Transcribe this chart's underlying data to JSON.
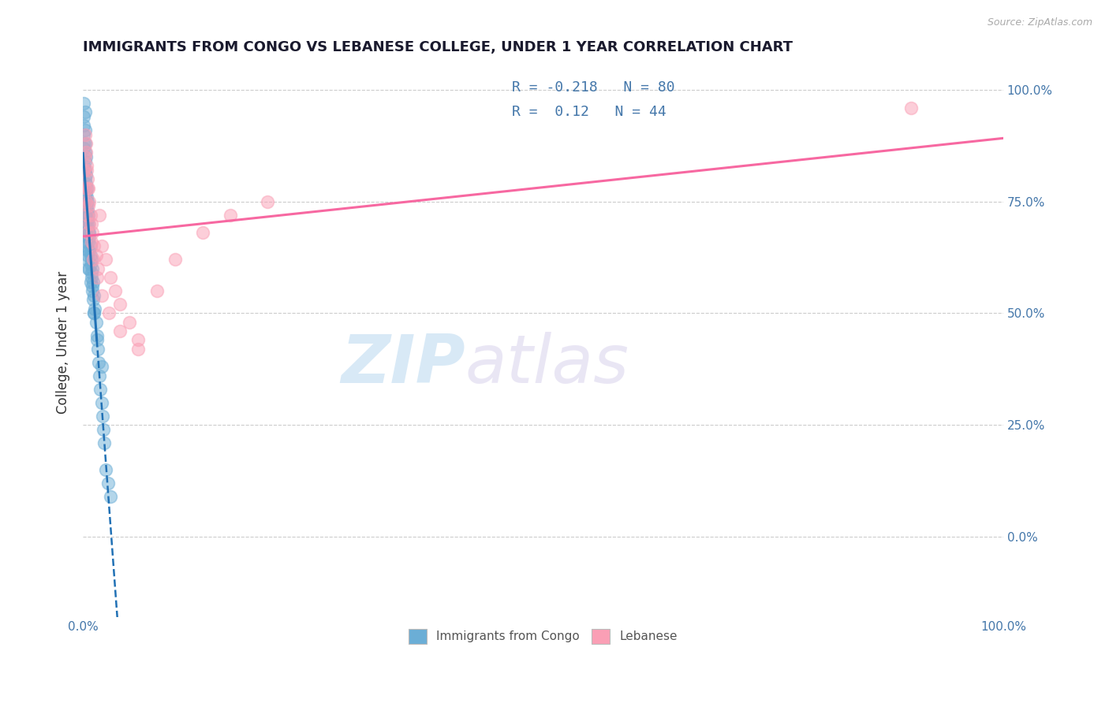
{
  "title": "IMMIGRANTS FROM CONGO VS LEBANESE COLLEGE, UNDER 1 YEAR CORRELATION CHART",
  "source": "Source: ZipAtlas.com",
  "ylabel": "College, Under 1 year",
  "legend_bottom": [
    "Immigrants from Congo",
    "Lebanese"
  ],
  "r_congo": -0.218,
  "n_congo": 80,
  "r_lebanese": 0.12,
  "n_lebanese": 44,
  "color_congo": "#6baed6",
  "color_lebanese": "#fa9fb5",
  "color_congo_line": "#2171b5",
  "color_lebanese_line": "#f768a1",
  "background_color": "#ffffff",
  "watermark_zip": "ZIP",
  "watermark_atlas": "atlas",
  "title_color": "#1a1a2e",
  "title_fontsize": 13,
  "axis_color": "#4477aa",
  "congo_scatter_x": [
    0.001,
    0.001,
    0.001,
    0.001,
    0.001,
    0.002,
    0.002,
    0.002,
    0.002,
    0.002,
    0.002,
    0.002,
    0.003,
    0.003,
    0.003,
    0.003,
    0.003,
    0.003,
    0.004,
    0.004,
    0.004,
    0.004,
    0.004,
    0.005,
    0.005,
    0.005,
    0.005,
    0.006,
    0.006,
    0.006,
    0.006,
    0.007,
    0.007,
    0.007,
    0.008,
    0.008,
    0.008,
    0.009,
    0.009,
    0.01,
    0.01,
    0.011,
    0.011,
    0.012,
    0.012,
    0.013,
    0.014,
    0.015,
    0.016,
    0.017,
    0.018,
    0.019,
    0.02,
    0.021,
    0.022,
    0.023,
    0.025,
    0.027,
    0.03,
    0.001,
    0.001,
    0.002,
    0.002,
    0.002,
    0.003,
    0.003,
    0.003,
    0.004,
    0.004,
    0.005,
    0.005,
    0.006,
    0.006,
    0.007,
    0.008,
    0.009,
    0.01,
    0.012,
    0.015,
    0.02
  ],
  "congo_scatter_y": [
    0.97,
    0.94,
    0.9,
    0.87,
    0.83,
    0.95,
    0.91,
    0.88,
    0.84,
    0.8,
    0.76,
    0.72,
    0.85,
    0.81,
    0.77,
    0.73,
    0.69,
    0.65,
    0.78,
    0.74,
    0.7,
    0.66,
    0.62,
    0.75,
    0.71,
    0.67,
    0.63,
    0.72,
    0.68,
    0.64,
    0.6,
    0.68,
    0.64,
    0.6,
    0.65,
    0.61,
    0.57,
    0.62,
    0.58,
    0.6,
    0.56,
    0.57,
    0.53,
    0.54,
    0.5,
    0.51,
    0.48,
    0.45,
    0.42,
    0.39,
    0.36,
    0.33,
    0.3,
    0.27,
    0.24,
    0.21,
    0.15,
    0.12,
    0.09,
    0.92,
    0.88,
    0.86,
    0.82,
    0.78,
    0.79,
    0.75,
    0.71,
    0.76,
    0.72,
    0.73,
    0.69,
    0.7,
    0.66,
    0.67,
    0.63,
    0.59,
    0.55,
    0.5,
    0.44,
    0.38
  ],
  "lebanese_scatter_x": [
    0.001,
    0.002,
    0.002,
    0.003,
    0.003,
    0.004,
    0.004,
    0.005,
    0.005,
    0.006,
    0.007,
    0.008,
    0.009,
    0.01,
    0.012,
    0.014,
    0.016,
    0.018,
    0.02,
    0.025,
    0.03,
    0.035,
    0.04,
    0.05,
    0.06,
    0.08,
    0.1,
    0.13,
    0.16,
    0.2,
    0.002,
    0.003,
    0.004,
    0.005,
    0.006,
    0.007,
    0.009,
    0.011,
    0.015,
    0.02,
    0.028,
    0.04,
    0.06,
    0.9
  ],
  "lebanese_scatter_y": [
    0.82,
    0.85,
    0.78,
    0.88,
    0.75,
    0.83,
    0.72,
    0.8,
    0.68,
    0.78,
    0.75,
    0.72,
    0.7,
    0.68,
    0.65,
    0.63,
    0.6,
    0.72,
    0.65,
    0.62,
    0.58,
    0.55,
    0.52,
    0.48,
    0.44,
    0.55,
    0.62,
    0.68,
    0.72,
    0.75,
    0.9,
    0.86,
    0.82,
    0.78,
    0.74,
    0.7,
    0.66,
    0.62,
    0.58,
    0.54,
    0.5,
    0.46,
    0.42,
    0.96
  ]
}
